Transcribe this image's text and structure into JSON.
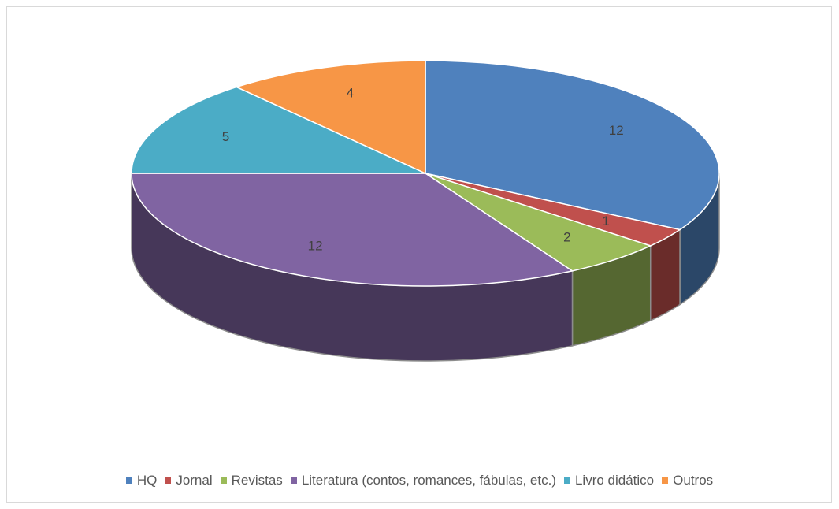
{
  "chart_data": {
    "type": "pie",
    "categories": [
      "HQ",
      "Jornal",
      "Revistas",
      "Literatura (contos, romances, fábulas, etc.)",
      "Livro didático",
      "Outros"
    ],
    "values": [
      12,
      1,
      2,
      12,
      5,
      4
    ],
    "colors": [
      "#4f81bd",
      "#c0504d",
      "#9bbb59",
      "#8064a2",
      "#4bacc6",
      "#f79646"
    ],
    "legend": "bottom"
  }
}
